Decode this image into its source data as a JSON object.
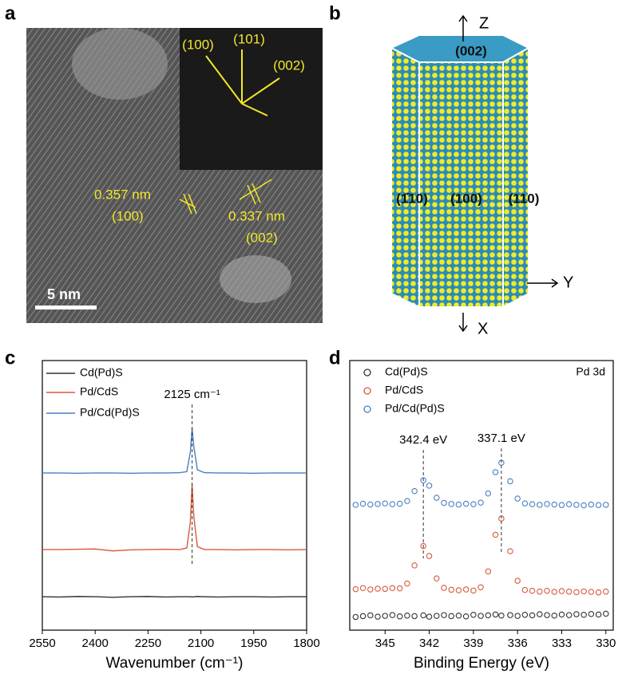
{
  "panels": {
    "a": {
      "letter": "a",
      "inset_labels": [
        "(100)",
        "(101)",
        "(002)"
      ],
      "spacing_1": "0.357 nm",
      "plane_1": "(100)",
      "spacing_2": "0.337 nm",
      "plane_2": "(002)",
      "scale_bar": "5 nm"
    },
    "b": {
      "letter": "b",
      "axis_z": "Z",
      "axis_y": "Y",
      "axis_x": "X",
      "top_face": "(002)",
      "faces": [
        "(1̄10)",
        "(100)",
        "(110)"
      ]
    }
  },
  "chart_data": [
    {
      "type": "line",
      "letter": "c",
      "x_label": "Wavenumber (cm⁻¹)",
      "xlim": [
        2550,
        1800
      ],
      "xticks": [
        2550,
        2400,
        2250,
        2100,
        1950,
        1800
      ],
      "ylim": [
        0,
        100
      ],
      "x": [
        2550,
        2500,
        2450,
        2400,
        2350,
        2300,
        2250,
        2200,
        2160,
        2140,
        2130,
        2125,
        2120,
        2110,
        2090,
        2050,
        2000,
        1950,
        1900,
        1850,
        1800
      ],
      "series": [
        {
          "name": "Cd(Pd)S",
          "color": "#333333",
          "values": [
            12.4,
            12.3,
            12.5,
            12.4,
            12.2,
            12.4,
            12.5,
            12.3,
            12.4,
            12.4,
            12.4,
            12.3,
            12.4,
            12.5,
            12.4,
            12.3,
            12.4,
            12.4,
            12.3,
            12.4,
            12.4
          ]
        },
        {
          "name": "Pd/CdS",
          "color": "#d9593c",
          "values": [
            29.9,
            29.9,
            30.0,
            30.1,
            29.4,
            29.8,
            29.9,
            30.0,
            29.9,
            30.5,
            40.0,
            54.0,
            42.0,
            31.0,
            29.9,
            29.9,
            29.8,
            29.9,
            29.9,
            29.8,
            29.9
          ]
        },
        {
          "name": "Pd/Cd(Pd)S",
          "color": "#4a7fc1",
          "values": [
            58.3,
            58.3,
            58.2,
            58.3,
            58.3,
            58.2,
            58.3,
            58.3,
            58.4,
            58.8,
            66.0,
            74.9,
            68.0,
            59.5,
            58.4,
            58.3,
            58.3,
            58.2,
            58.3,
            58.3,
            58.3
          ]
        }
      ],
      "annotations": [
        {
          "text": "2125 cm⁻¹",
          "x": 2125
        }
      ]
    },
    {
      "type": "scatter",
      "letter": "d",
      "x_label": "Binding Energy (eV)",
      "corner_label": "Pd 3d",
      "xlim": [
        347.4,
        329.5
      ],
      "xticks": [
        345,
        342,
        339,
        336,
        333,
        330
      ],
      "ylim": [
        0,
        100
      ],
      "x": [
        347,
        346.5,
        346,
        345.5,
        345,
        344.5,
        344,
        343.5,
        343,
        342.4,
        342,
        341.5,
        341,
        340.5,
        340,
        339.5,
        339,
        338.5,
        338,
        337.5,
        337.1,
        336.5,
        336,
        335.5,
        335,
        334.5,
        334,
        333.5,
        333,
        332.5,
        332,
        331.5,
        331,
        330.5,
        330
      ],
      "series": [
        {
          "name": "Cd(Pd)S",
          "color": "#333333",
          "values": [
            4.9,
            5.2,
            5.5,
            5.0,
            5.3,
            5.6,
            5.1,
            5.4,
            5.2,
            5.5,
            5.0,
            5.3,
            5.6,
            5.2,
            5.4,
            5.1,
            5.7,
            5.3,
            5.5,
            5.8,
            5.4,
            5.6,
            5.3,
            5.7,
            5.5,
            5.9,
            5.6,
            5.4,
            5.8,
            5.6,
            5.9,
            5.7,
            6.0,
            5.8,
            6.1
          ]
        },
        {
          "name": "Pd/CdS",
          "color": "#d9593c",
          "values": [
            15.2,
            15.6,
            15.1,
            15.4,
            15.3,
            15.6,
            15.5,
            17.3,
            24.0,
            31.2,
            27.5,
            19.2,
            15.7,
            15.0,
            14.8,
            15.1,
            14.7,
            15.9,
            21.8,
            35.4,
            41.4,
            29.3,
            18.3,
            14.9,
            14.6,
            14.3,
            14.6,
            14.2,
            14.5,
            14.3,
            14.1,
            14.4,
            14.2,
            14.0,
            14.3
          ]
        },
        {
          "name": "Pd/Cd(Pd)S",
          "color": "#4a7fc1",
          "values": [
            46.5,
            46.9,
            46.6,
            46.8,
            47.0,
            46.7,
            46.9,
            47.9,
            51.6,
            55.6,
            53.6,
            49.1,
            47.2,
            46.8,
            46.6,
            46.9,
            46.7,
            47.3,
            50.7,
            58.6,
            62.1,
            55.2,
            48.8,
            47.0,
            46.7,
            46.5,
            46.8,
            46.6,
            46.4,
            46.7,
            46.5,
            46.3,
            46.6,
            46.4,
            46.5
          ]
        }
      ],
      "annotations": [
        {
          "text": "342.4 eV",
          "x": 342.4
        },
        {
          "text": "337.1 eV",
          "x": 337.1
        }
      ]
    }
  ]
}
